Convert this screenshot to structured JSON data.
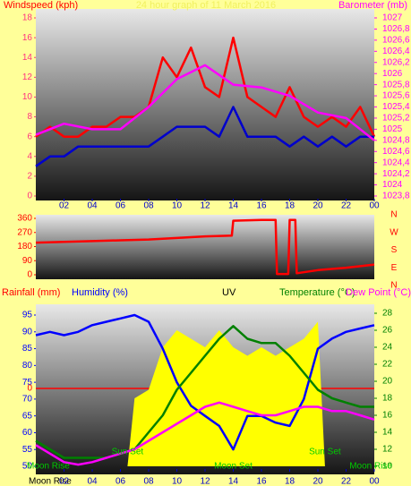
{
  "chart_data": [
    {
      "type": "line",
      "title": "24 hour graph of 11 March 2016",
      "y_label": "Windspeed (kph)",
      "y2_label": "Barometer (mb)",
      "xlim": [
        0,
        24
      ],
      "xticks": [
        {
          "value": 2,
          "label": "02"
        },
        {
          "value": 4,
          "label": "04"
        },
        {
          "value": 6,
          "label": "06"
        },
        {
          "value": 8,
          "label": "08"
        },
        10,
        12,
        14,
        16,
        18,
        20,
        22,
        {
          "value": 24,
          "label": "00"
        }
      ],
      "ylim": [
        0,
        18
      ],
      "yticks": [
        0,
        2,
        4,
        6,
        8,
        10,
        12,
        14,
        16,
        18
      ],
      "y2lim": [
        1023.8,
        1027
      ],
      "y2ticks": [
        {
          "value": 1023.8,
          "label": "1023,8"
        },
        1024,
        {
          "value": 1024.2,
          "label": "1024,2"
        },
        {
          "value": 1024.4,
          "label": "1024,4"
        },
        {
          "value": 1024.6,
          "label": "1024,6"
        },
        {
          "value": 1024.8,
          "label": "1024,8"
        },
        1025,
        {
          "value": 1025.2,
          "label": "1025,2"
        },
        {
          "value": 1025.4,
          "label": "1025,4"
        },
        {
          "value": 1025.6,
          "label": "1025,6"
        },
        {
          "value": 1025.8,
          "label": "1025,8"
        },
        1026,
        {
          "value": 1026.2,
          "label": "1026,2"
        },
        {
          "value": 1026.4,
          "label": "1026,4"
        },
        {
          "value": 1026.6,
          "label": "1026,6"
        },
        {
          "value": 1026.8,
          "label": "1026,8"
        },
        1027
      ],
      "series": [
        {
          "color": "#ff0000",
          "x": [
            0,
            1,
            2,
            3,
            4,
            5,
            6,
            7,
            8,
            9,
            10,
            11,
            12,
            13,
            14,
            15,
            16,
            17,
            18,
            19,
            20,
            21,
            22,
            23,
            24
          ],
          "values": [
            6,
            7,
            6,
            6,
            7,
            7,
            8,
            8,
            9,
            14,
            12,
            15,
            11,
            10,
            16,
            10,
            9,
            8,
            11,
            8,
            7,
            8,
            7,
            9,
            6
          ]
        },
        {
          "color": "#0000cc",
          "x": [
            0,
            1,
            2,
            3,
            4,
            5,
            6,
            7,
            8,
            9,
            10,
            11,
            12,
            13,
            14,
            15,
            16,
            17,
            18,
            19,
            20,
            21,
            22,
            23,
            24
          ],
          "values": [
            3,
            4,
            4,
            5,
            5,
            5,
            5,
            5,
            5,
            6,
            7,
            7,
            7,
            6,
            9,
            6,
            6,
            6,
            5,
            6,
            5,
            6,
            5,
            6,
            6
          ]
        },
        {
          "color": "#ff00ff",
          "axis": "y2",
          "x": [
            0,
            2,
            4,
            6,
            8,
            10,
            12,
            14,
            16,
            18,
            20,
            22,
            24
          ],
          "values": [
            1024.9,
            1025.1,
            1025.0,
            1025.0,
            1025.4,
            1025.9,
            1026.15,
            1025.8,
            1025.75,
            1025.6,
            1025.3,
            1025.2,
            1024.8
          ]
        }
      ]
    },
    {
      "type": "line",
      "xlim": [
        0,
        24
      ],
      "ylim": [
        0,
        360
      ],
      "yticks": [
        0,
        90,
        180,
        270,
        360
      ],
      "compass": [
        "N",
        "W",
        "S",
        "E",
        "N"
      ],
      "series": [
        {
          "color": "#ff0000",
          "x": [
            0,
            2,
            4,
            6,
            8,
            10,
            12,
            13.9,
            14,
            16,
            17,
            17.1,
            17.9,
            18,
            18.4,
            18.5,
            20,
            22,
            24
          ],
          "values": [
            205,
            210,
            215,
            220,
            225,
            235,
            245,
            250,
            345,
            350,
            350,
            5,
            5,
            350,
            350,
            10,
            30,
            45,
            65
          ]
        }
      ]
    },
    {
      "type": "line",
      "labels": [
        "Rainfall (mm)",
        "Humidity (%)",
        "UV",
        "Temperature (°C)",
        "Dew Point (°C)"
      ],
      "xlim": [
        0,
        24
      ],
      "xticks": [
        {
          "value": 2,
          "label": "02"
        },
        {
          "value": 4,
          "label": "04"
        },
        {
          "value": 6,
          "label": "06"
        },
        {
          "value": 8,
          "label": "08"
        },
        10,
        12,
        14,
        16,
        18,
        20,
        22,
        {
          "value": 24,
          "label": "00"
        }
      ],
      "ylim": [
        50,
        95
      ],
      "yticks": [
        50,
        55,
        60,
        65,
        70,
        75,
        80,
        85,
        90,
        95
      ],
      "y2lim": [
        10,
        28
      ],
      "y2ticks": [
        10,
        12,
        14,
        16,
        18,
        20,
        22,
        24,
        26,
        28
      ],
      "rain_line": 0,
      "events": [
        {
          "x": 0,
          "label": "Moon Rise"
        },
        {
          "x": 6.5,
          "label": "Sun Set"
        },
        {
          "x": 14,
          "label": "Moon Set"
        },
        {
          "x": 20.5,
          "label": "Sun Set"
        },
        {
          "x": 24,
          "label": "Moon Rise"
        }
      ],
      "footer": "Moon Rise",
      "series": [
        {
          "name": "UV",
          "color": "#ffff00",
          "area": true,
          "axis": "y2",
          "x": [
            6.5,
            7,
            8,
            9,
            10,
            11,
            12,
            13,
            14,
            15,
            16,
            17,
            18,
            19,
            20,
            20.5
          ],
          "values": [
            10,
            18,
            19,
            24,
            26,
            25,
            24,
            26,
            24,
            23,
            24,
            23,
            24,
            25,
            27,
            10
          ]
        },
        {
          "name": "Humidity (%)",
          "color": "#0000ff",
          "x": [
            0,
            1,
            2,
            3,
            4,
            5,
            6,
            7,
            8,
            9,
            10,
            11,
            12,
            13,
            14,
            15,
            16,
            17,
            18,
            19,
            20,
            21,
            22,
            23,
            24
          ],
          "values": [
            89,
            90,
            89,
            90,
            92,
            93,
            94,
            95,
            93,
            85,
            75,
            68,
            65,
            62,
            55,
            65,
            65,
            63,
            62,
            70,
            85,
            88,
            90,
            91,
            92
          ]
        },
        {
          "name": "Temperature (°C)",
          "color": "#008000",
          "axis": "y2",
          "x": [
            0,
            1,
            2,
            3,
            4,
            5,
            6,
            7,
            8,
            9,
            10,
            11,
            12,
            13,
            14,
            15,
            16,
            17,
            18,
            19,
            20,
            21,
            22,
            23,
            24
          ],
          "values": [
            13,
            12,
            11,
            11,
            11,
            11,
            11.5,
            12,
            14,
            16,
            19,
            21,
            23,
            25,
            26.5,
            25,
            24.5,
            24.5,
            23,
            21,
            19,
            18,
            17.5,
            17,
            17
          ]
        },
        {
          "name": "Dew Point (°C)",
          "color": "#ff00ff",
          "axis": "y2",
          "x": [
            0,
            1,
            2,
            3,
            4,
            5,
            6,
            7,
            8,
            9,
            10,
            11,
            12,
            13,
            14,
            15,
            16,
            17,
            18,
            19,
            20,
            21,
            22,
            23,
            24
          ],
          "values": [
            12.5,
            11.5,
            10.5,
            10.2,
            10.5,
            11,
            11.5,
            12,
            13,
            14,
            15,
            16,
            17,
            17.5,
            17,
            16.5,
            16,
            16,
            16.5,
            17,
            17,
            16.5,
            16.5,
            16,
            15.5
          ]
        }
      ]
    }
  ]
}
